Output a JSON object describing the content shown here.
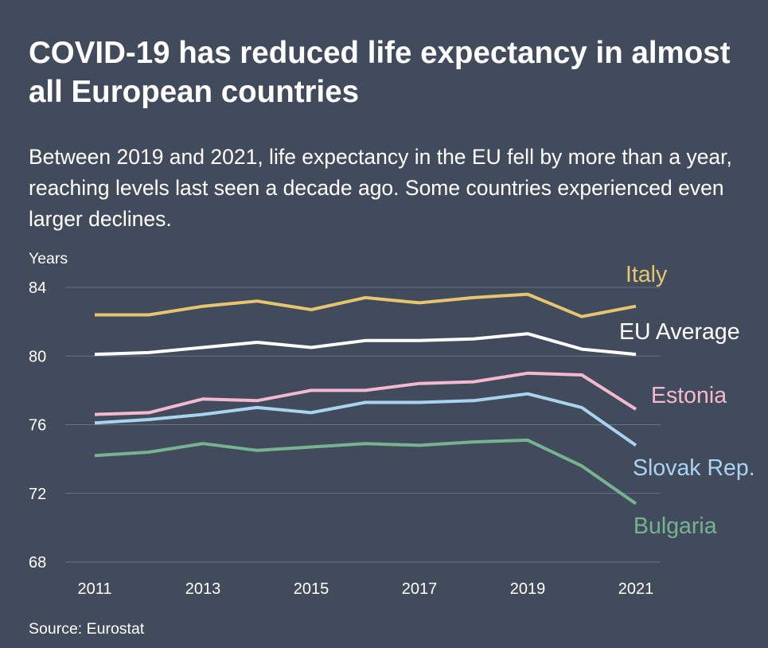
{
  "title": "COVID-19 has reduced life expectancy in almost all European countries",
  "subtitle": "Between 2019 and 2021, life expectancy in the EU fell by more than a year, reaching levels last seen a decade ago. Some countries experienced even larger declines.",
  "source": "Source: Eurostat",
  "chart_data": {
    "type": "line",
    "title": "COVID-19 has reduced life expectancy in almost all European countries",
    "subtitle": "Between 2019 and 2021, life expectancy in the EU fell by more than a year, reaching levels last seen a decade ago. Some countries experienced even larger declines.",
    "xlabel": "",
    "ylabel": "Years",
    "x": [
      2011,
      2012,
      2013,
      2014,
      2015,
      2016,
      2017,
      2018,
      2019,
      2020,
      2021
    ],
    "x_ticks": [
      "2011",
      "2013",
      "2015",
      "2017",
      "2019",
      "2021"
    ],
    "y_ticks": [
      "84",
      "80",
      "76",
      "72",
      "68"
    ],
    "ylim": [
      68,
      84
    ],
    "grid": true,
    "legend": "direct labels at line ends",
    "series": [
      {
        "name": "Italy",
        "color": "#e5c56f",
        "values": [
          82.4,
          82.4,
          82.9,
          83.2,
          82.7,
          83.4,
          83.1,
          83.4,
          83.6,
          82.3,
          82.9
        ]
      },
      {
        "name": "EU Average",
        "color": "#ffffff",
        "values": [
          80.1,
          80.2,
          80.5,
          80.8,
          80.5,
          80.9,
          80.9,
          81.0,
          81.3,
          80.4,
          80.1
        ]
      },
      {
        "name": "Estonia",
        "color": "#f4b8cf",
        "values": [
          76.6,
          76.7,
          77.5,
          77.4,
          78.0,
          78.0,
          78.4,
          78.5,
          79.0,
          78.9,
          76.9
        ]
      },
      {
        "name": "Slovak Rep.",
        "color": "#a9d4ef",
        "values": [
          76.1,
          76.3,
          76.6,
          77.0,
          76.7,
          77.3,
          77.3,
          77.4,
          77.8,
          77.0,
          74.8
        ]
      },
      {
        "name": "Bulgaria",
        "color": "#77b391",
        "values": [
          74.2,
          74.4,
          74.9,
          74.5,
          74.7,
          74.9,
          74.8,
          75.0,
          75.1,
          73.6,
          71.4
        ]
      }
    ]
  }
}
